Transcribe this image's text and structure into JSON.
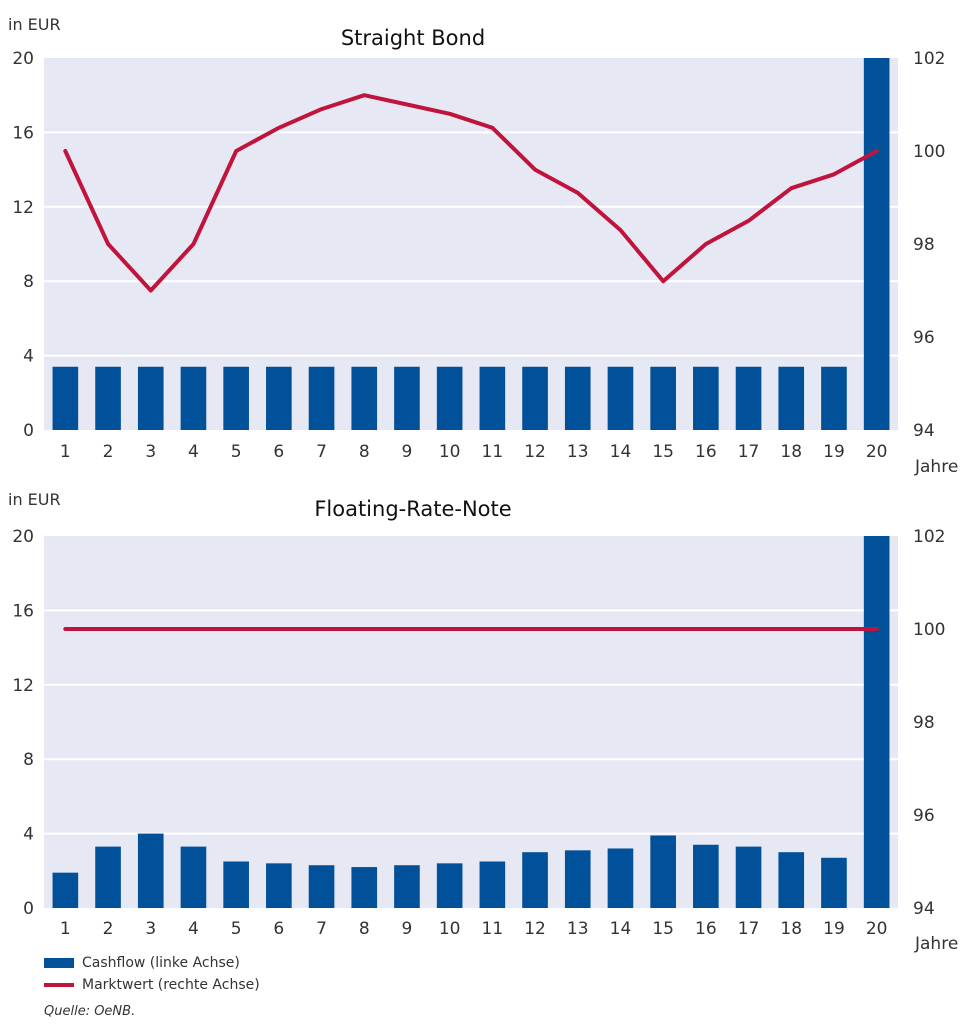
{
  "colors": {
    "bar": "#00509a",
    "line": "#c0143c",
    "plot_background": "#e6e8f4",
    "grid": "#ffffff"
  },
  "chart_data": [
    {
      "type": "bar+line",
      "title": "Straight Bond",
      "left_axis_unit": "in EUR",
      "xlabel": "Jahre",
      "categories": [
        "1",
        "2",
        "3",
        "4",
        "5",
        "6",
        "7",
        "8",
        "9",
        "10",
        "11",
        "12",
        "13",
        "14",
        "15",
        "16",
        "17",
        "18",
        "19",
        "20"
      ],
      "ylim_left": [
        0,
        20
      ],
      "yticks_left": [
        0,
        4,
        8,
        12,
        16,
        20
      ],
      "ylim_right": [
        94,
        102
      ],
      "yticks_right": [
        94,
        96,
        98,
        100,
        102
      ],
      "grid": true,
      "series": [
        {
          "name": "Cashflow (linke Achse)",
          "type": "bar",
          "axis": "left",
          "values": [
            3.4,
            3.4,
            3.4,
            3.4,
            3.4,
            3.4,
            3.4,
            3.4,
            3.4,
            3.4,
            3.4,
            3.4,
            3.4,
            3.4,
            3.4,
            3.4,
            3.4,
            3.4,
            3.4,
            20
          ]
        },
        {
          "name": "Marktwert (rechte Achse)",
          "type": "line",
          "axis": "right",
          "values": [
            100,
            98,
            97,
            98,
            100,
            100.5,
            100.9,
            101.2,
            101,
            100.8,
            100.5,
            99.6,
            99.1,
            98.3,
            97.2,
            98,
            98.5,
            99.2,
            99.5,
            100
          ]
        }
      ]
    },
    {
      "type": "bar+line",
      "title": "Floating-Rate-Note",
      "left_axis_unit": "in EUR",
      "xlabel": "Jahre",
      "categories": [
        "1",
        "2",
        "3",
        "4",
        "5",
        "6",
        "7",
        "8",
        "9",
        "10",
        "11",
        "12",
        "13",
        "14",
        "15",
        "16",
        "17",
        "18",
        "19",
        "20"
      ],
      "ylim_left": [
        0,
        20
      ],
      "yticks_left": [
        0,
        4,
        8,
        12,
        16,
        20
      ],
      "ylim_right": [
        94,
        102
      ],
      "yticks_right": [
        94,
        96,
        98,
        100,
        102
      ],
      "grid": true,
      "series": [
        {
          "name": "Cashflow (linke Achse)",
          "type": "bar",
          "axis": "left",
          "values": [
            1.9,
            3.3,
            4,
            3.3,
            2.5,
            2.4,
            2.3,
            2.2,
            2.3,
            2.4,
            2.5,
            3,
            3.1,
            3.2,
            3.9,
            3.4,
            3.3,
            3,
            2.7,
            20
          ]
        },
        {
          "name": "Marktwert (rechte Achse)",
          "type": "line",
          "axis": "right",
          "values": [
            100,
            100,
            100,
            100,
            100,
            100,
            100,
            100,
            100,
            100,
            100,
            100,
            100,
            100,
            100,
            100,
            100,
            100,
            100,
            100
          ]
        }
      ]
    }
  ],
  "legend": {
    "bar_label": "Cashflow (linke Achse)",
    "line_label": "Marktwert (rechte Achse)"
  },
  "source": "Quelle: OeNB."
}
